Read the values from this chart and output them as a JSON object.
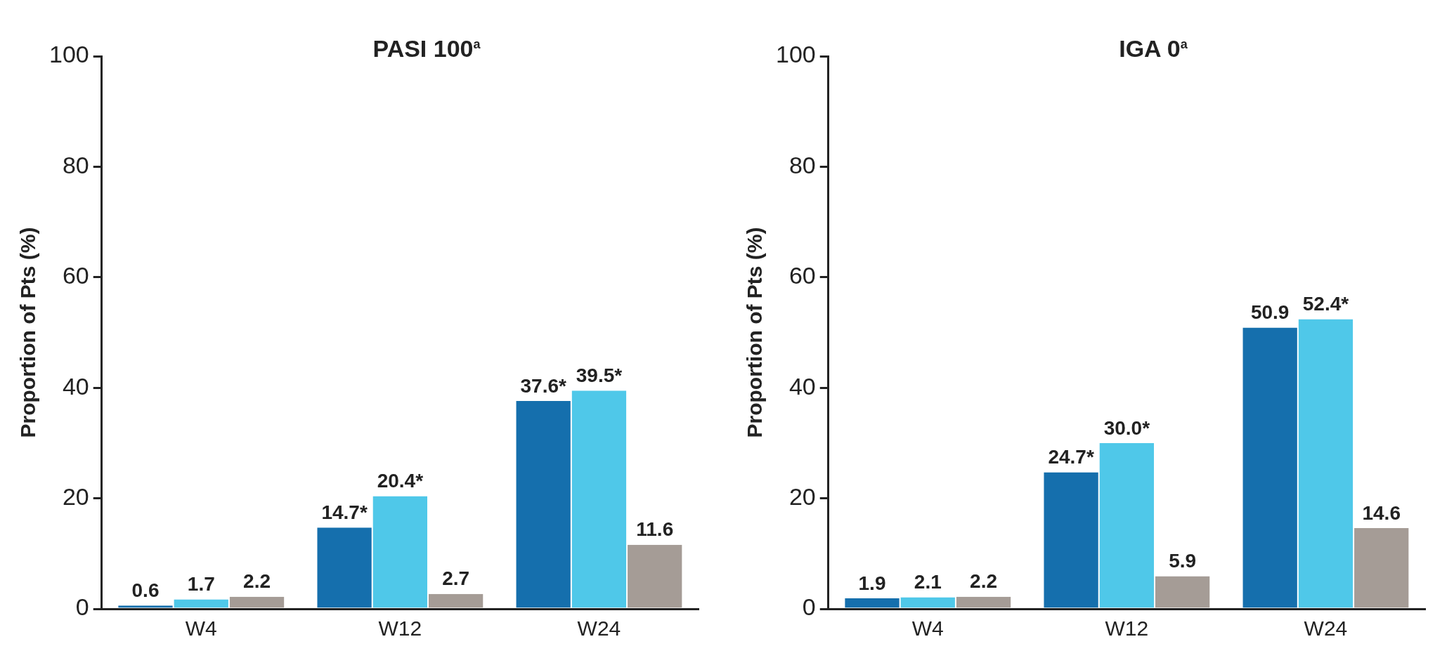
{
  "chart_data": [
    {
      "type": "bar",
      "title": "PASI 100$^{a}$",
      "ylabel": "Proportion of Pts (%)",
      "categories": [
        "W4",
        "W12",
        "W24"
      ],
      "series": [
        {
          "color": "#156fad",
          "values": [
            0.6,
            14.7,
            37.6
          ],
          "value_labels": [
            "0.6",
            "14.7*",
            "37.6*"
          ]
        },
        {
          "color": "#4fc8e9",
          "values": [
            1.7,
            20.4,
            39.5
          ],
          "value_labels": [
            "1.7",
            "20.4*",
            "39.5*"
          ]
        },
        {
          "color": "#a59c96",
          "values": [
            2.2,
            2.7,
            11.6
          ],
          "value_labels": [
            "2.2",
            "2.7",
            "11.6"
          ]
        }
      ],
      "ylim": [
        0,
        100
      ],
      "yticks": [
        0,
        20,
        40,
        60,
        80,
        100
      ],
      "grid": false,
      "legend": false
    },
    {
      "type": "bar",
      "title": "IGA 0$^{a}$",
      "ylabel": "Proportion of Pts (%)",
      "categories": [
        "W4",
        "W12",
        "W24"
      ],
      "series": [
        {
          "color": "#156fad",
          "values": [
            1.9,
            24.7,
            50.9
          ],
          "value_labels": [
            "1.9",
            "24.7*",
            "50.9"
          ]
        },
        {
          "color": "#4fc8e9",
          "values": [
            2.1,
            30.0,
            52.4
          ],
          "value_labels": [
            "2.1",
            "30.0*",
            "52.4*"
          ]
        },
        {
          "color": "#a59c96",
          "values": [
            2.2,
            5.9,
            14.6
          ],
          "value_labels": [
            "2.2",
            "5.9",
            "14.6"
          ]
        }
      ],
      "ylim": [
        0,
        100
      ],
      "yticks": [
        0,
        20,
        40,
        60,
        80,
        100
      ],
      "grid": false,
      "legend": false
    }
  ]
}
